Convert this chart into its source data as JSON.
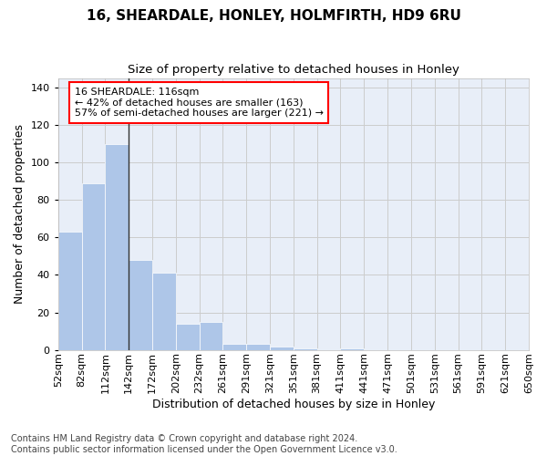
{
  "title": "16, SHEARDALE, HONLEY, HOLMFIRTH, HD9 6RU",
  "subtitle": "Size of property relative to detached houses in Honley",
  "xlabel": "Distribution of detached houses by size in Honley",
  "ylabel": "Number of detached properties",
  "bar_values": [
    63,
    89,
    110,
    48,
    41,
    14,
    15,
    3,
    3,
    2,
    1,
    0,
    1,
    0,
    0,
    0,
    0,
    0,
    0,
    0
  ],
  "bin_labels": [
    "52sqm",
    "82sqm",
    "112sqm",
    "142sqm",
    "172sqm",
    "202sqm",
    "232sqm",
    "261sqm",
    "291sqm",
    "321sqm",
    "351sqm",
    "381sqm",
    "411sqm",
    "441sqm",
    "471sqm",
    "501sqm",
    "531sqm",
    "561sqm",
    "591sqm",
    "621sqm",
    "650sqm"
  ],
  "bar_color": "#aec6e8",
  "bar_edgecolor": "white",
  "grid_color": "#cccccc",
  "background_color": "#e8eef8",
  "vline_color": "#333333",
  "annotation_text": "16 SHEARDALE: 116sqm\n← 42% of detached houses are smaller (163)\n57% of semi-detached houses are larger (221) →",
  "annotation_box_edgecolor": "red",
  "annotation_box_facecolor": "white",
  "ylim": [
    0,
    145
  ],
  "yticks": [
    0,
    20,
    40,
    60,
    80,
    100,
    120,
    140
  ],
  "footer_text": "Contains HM Land Registry data © Crown copyright and database right 2024.\nContains public sector information licensed under the Open Government Licence v3.0.",
  "title_fontsize": 11,
  "subtitle_fontsize": 9.5,
  "ylabel_fontsize": 9,
  "xlabel_fontsize": 9,
  "tick_fontsize": 8,
  "annotation_fontsize": 8,
  "footer_fontsize": 7,
  "vline_bin_edge": 2.5
}
